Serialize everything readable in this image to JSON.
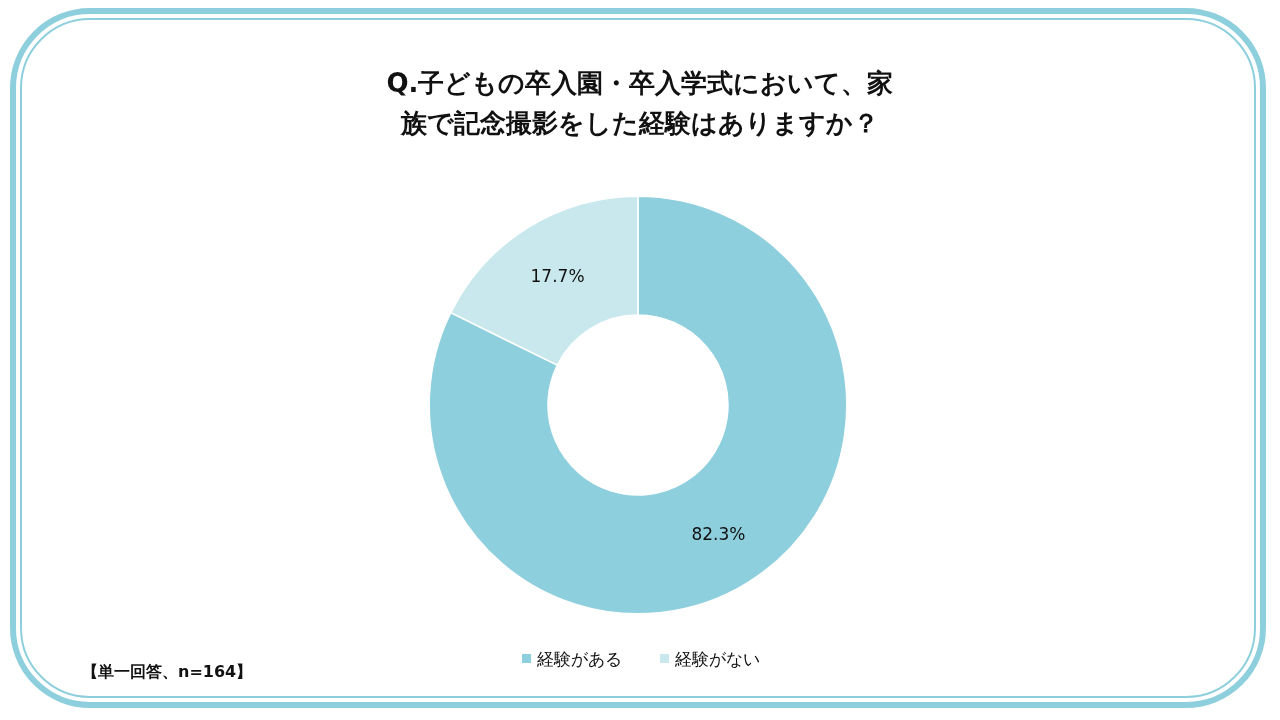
{
  "chart_data": {
    "type": "donut",
    "title": "Q.子どもの卒入園・卒入学式において、家族で記念撮影をした経験はありますか？",
    "categories": [
      "経験がある",
      "経験がない"
    ],
    "values": [
      82.3,
      17.7
    ],
    "value_labels": [
      "82.3%",
      "17.7%"
    ],
    "colors": [
      "#8ecfdd",
      "#c9e8ee"
    ],
    "legend": "bottom",
    "annotations": [
      "【単一回答、n=164】"
    ]
  }
}
